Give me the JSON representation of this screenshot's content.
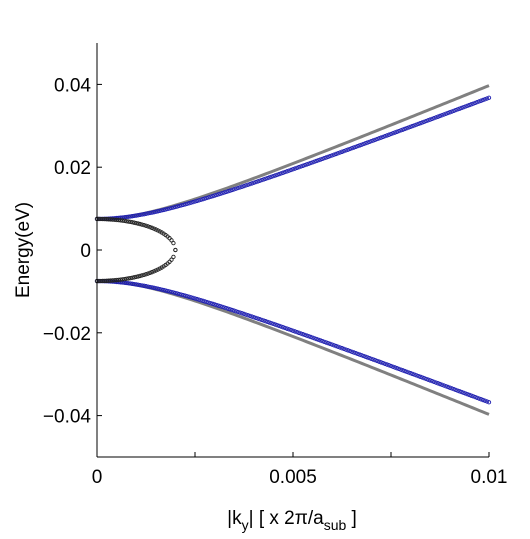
{
  "chart_data": {
    "type": "scatter",
    "xlabel": {
      "prefix": "|k",
      "sub1": "y",
      "mid": "| [ x 2π/a",
      "sub2": "sub",
      "suffix": " ]"
    },
    "ylabel": "Energy(eV)",
    "xlim": [
      0,
      0.01
    ],
    "ylim": [
      -0.05,
      0.05
    ],
    "xticks": [
      {
        "value": 0,
        "label": "0"
      },
      {
        "value": 0.0025,
        "label": ""
      },
      {
        "value": 0.005,
        "label": "0.005"
      },
      {
        "value": 0.0075,
        "label": ""
      },
      {
        "value": 0.01,
        "label": "0.01"
      }
    ],
    "yticks": [
      {
        "value": 0.04,
        "label": "0.04"
      },
      {
        "value": 0.02,
        "label": "0.02"
      },
      {
        "value": 0,
        "label": "0"
      },
      {
        "value": -0.02,
        "label": "−0.02"
      },
      {
        "value": -0.04,
        "label": "−0.04"
      }
    ],
    "grid": false,
    "colors": {
      "gray_line": "#808080",
      "blue_markers": "#1f1fb0",
      "black_markers": "#222222"
    },
    "series": [
      {
        "style": "line",
        "color": "gray",
        "model": "sqrt(gap^2 + (v*k)^2)",
        "gap": 0.0075,
        "v": 3.9,
        "x_range": [
          0,
          0.01
        ],
        "branches": [
          "upper",
          "lower"
        ]
      },
      {
        "style": "markers",
        "color": "blue",
        "model": "sqrt(gap^2 + (v*k)^2)",
        "gap": 0.0075,
        "v": 3.6,
        "x_range": [
          0,
          0.01
        ],
        "n_points": 200,
        "branches": [
          "upper",
          "lower"
        ]
      },
      {
        "style": "markers",
        "color": "black",
        "model": "gap*sqrt(1 - (k/kmax)^2)",
        "gap": 0.0075,
        "kmax": 0.002,
        "n_points": 40,
        "branches": [
          "upper",
          "lower"
        ]
      }
    ]
  }
}
